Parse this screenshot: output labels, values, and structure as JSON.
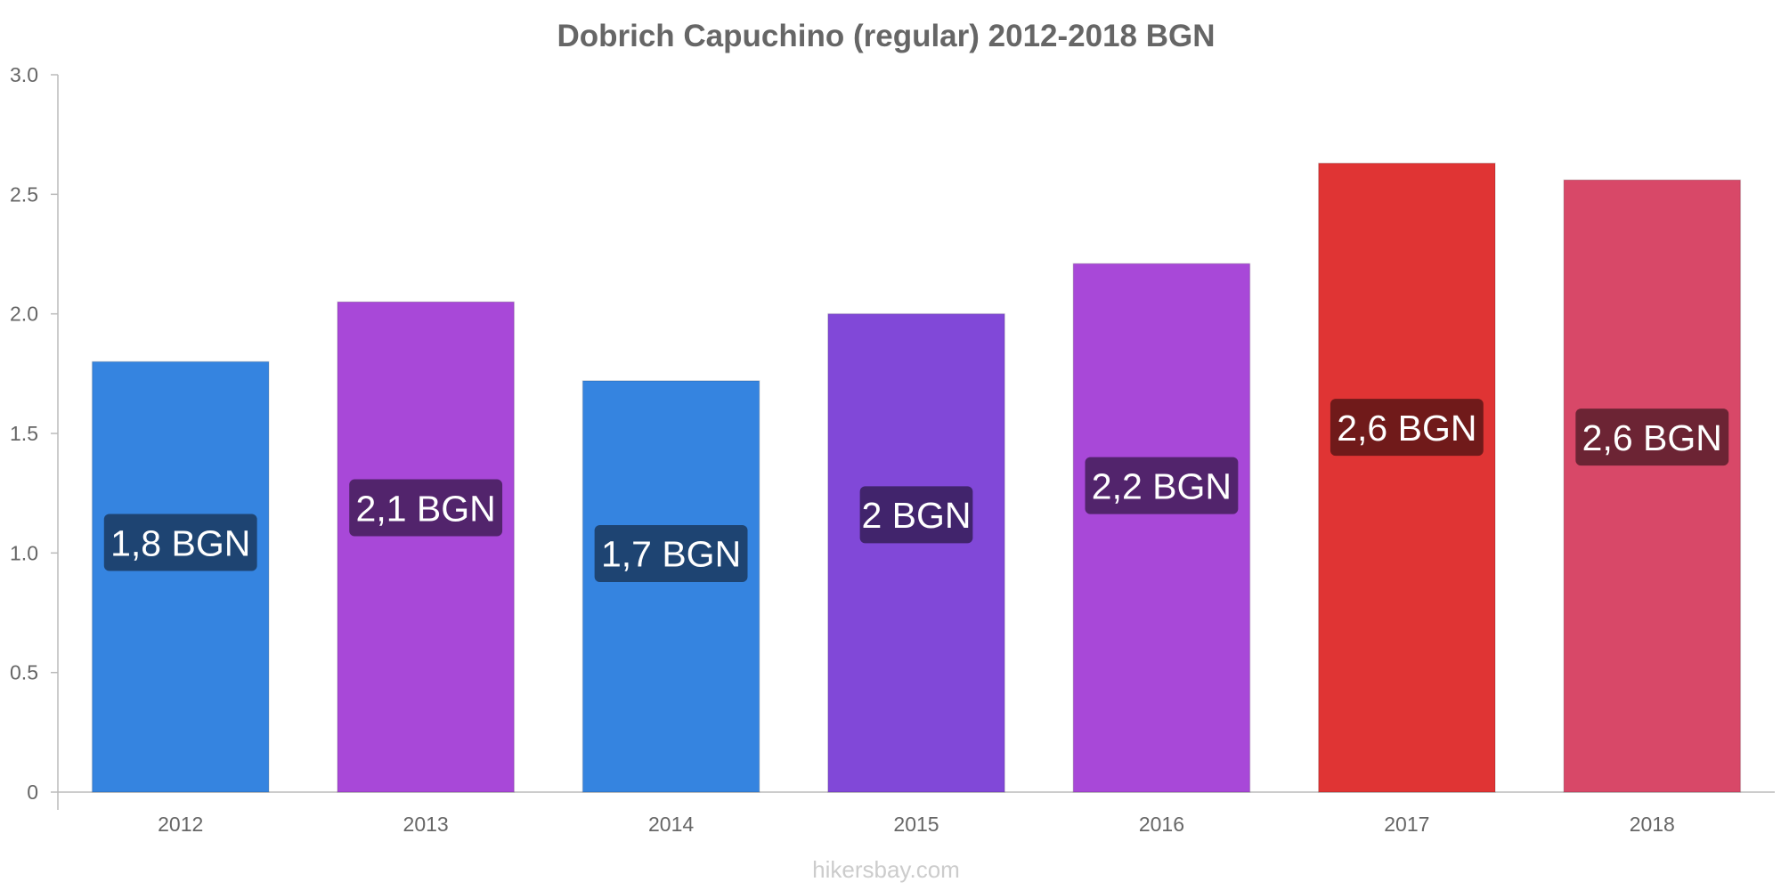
{
  "chart_data": {
    "type": "bar",
    "title": "Dobrich Capuchino (regular) 2012-2018 BGN",
    "xlabel": "",
    "ylabel": "",
    "ylim": [
      0,
      3.0
    ],
    "y_ticks": [
      "0",
      "0.5",
      "1.0",
      "1.5",
      "2.0",
      "2.5",
      "3.0"
    ],
    "y_tick_values": [
      0,
      0.5,
      1.0,
      1.5,
      2.0,
      2.5,
      3.0
    ],
    "categories": [
      "2012",
      "2013",
      "2014",
      "2015",
      "2016",
      "2017",
      "2018"
    ],
    "values": [
      1.8,
      2.05,
      1.72,
      2.0,
      2.21,
      2.63,
      2.56
    ],
    "data_labels": [
      "1,8 BGN",
      "2,1 BGN",
      "1,7 BGN",
      "2 BGN",
      "2,2 BGN",
      "2,6 BGN",
      "2,6 BGN"
    ],
    "bar_colors": [
      "#3584e0",
      "#a848d8",
      "#3584e0",
      "#8148d8",
      "#a848d8",
      "#e03434",
      "#d84868"
    ],
    "label_bg_colors": [
      "#1e4472",
      "#52246c",
      "#1e4472",
      "#41246c",
      "#52246c",
      "#701a1a",
      "#6c2434"
    ],
    "grid": false,
    "legend": "none"
  },
  "watermark": "hikersbay.com"
}
